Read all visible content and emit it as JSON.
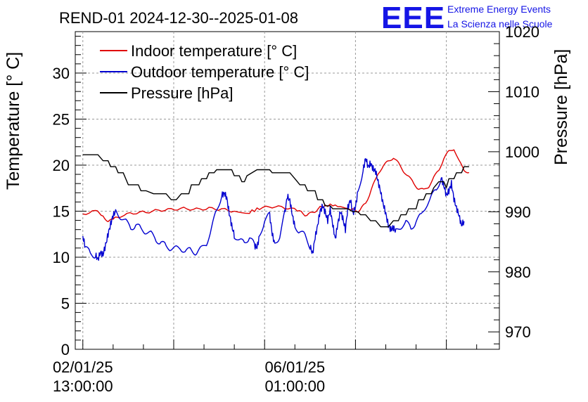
{
  "chart_data": {
    "type": "line",
    "title": "REND-01 2024-12-30--2025-01-08",
    "logo": {
      "text": "EEE",
      "line1": "Extreme Energy Events",
      "line2": "La Scienza nelle Scuole"
    },
    "ylabel_left": "Temperature [° C]",
    "ylabel_right": "Pressure [hPa]",
    "ylim_left": [
      0,
      34.5
    ],
    "ylim_right": [
      967.1,
      1020
    ],
    "xlim_hours": [
      -3,
      165
    ],
    "x_unit": "hours since 02/01/25 13:00:00",
    "left_ticks": [
      "0",
      "5",
      "10",
      "15",
      "20",
      "25",
      "30"
    ],
    "right_ticks": [
      "970",
      "980",
      "990",
      "1000",
      "1010",
      "1020"
    ],
    "x_ticks": [
      {
        "hours": 0,
        "line1": "02/01/25",
        "line2": "13:00:00"
      },
      {
        "hours": 84,
        "line1": "06/01/25",
        "line2": "01:00:00"
      }
    ],
    "grid": true,
    "legend_position": "top-left",
    "series": [
      {
        "name": "Indoor temperature [° C]",
        "axis": "left",
        "color": "#e00000",
        "points": [
          [
            0,
            14.7
          ],
          [
            5,
            15.0
          ],
          [
            8,
            14.6
          ],
          [
            10,
            13.8
          ],
          [
            12,
            14.1
          ],
          [
            15,
            14.5
          ],
          [
            20,
            14.8
          ],
          [
            25,
            14.9
          ],
          [
            30,
            15.1
          ],
          [
            35,
            15.2
          ],
          [
            40,
            15.3
          ],
          [
            45,
            15.2
          ],
          [
            50,
            15.3
          ],
          [
            55,
            15.2
          ],
          [
            60,
            15.0
          ],
          [
            66,
            14.9
          ],
          [
            70,
            15.3
          ],
          [
            75,
            15.5
          ],
          [
            80,
            15.4
          ],
          [
            85,
            15.1
          ],
          [
            88,
            14.6
          ],
          [
            91,
            14.8
          ],
          [
            94,
            15.4
          ],
          [
            98,
            15.7
          ],
          [
            102,
            15.5
          ],
          [
            106,
            15.2
          ],
          [
            109,
            15.0
          ],
          [
            112,
            15.8
          ],
          [
            115,
            17.8
          ],
          [
            117,
            19.2
          ],
          [
            119,
            19.8
          ],
          [
            121,
            20.5
          ],
          [
            123,
            20.8
          ],
          [
            125,
            20.2
          ],
          [
            127,
            19.4
          ],
          [
            129,
            18.7
          ],
          [
            131,
            18.1
          ],
          [
            133,
            17.4
          ],
          [
            135,
            17.3
          ],
          [
            137,
            17.7
          ],
          [
            139,
            18.6
          ],
          [
            141,
            19.5
          ],
          [
            143,
            20.7
          ],
          [
            145,
            21.5
          ],
          [
            147,
            21.8
          ],
          [
            149,
            20.4
          ],
          [
            151,
            19.5
          ],
          [
            153,
            19.2
          ]
        ]
      },
      {
        "name": "Outdoor temperature [° C]",
        "axis": "left",
        "color": "#0000d0",
        "points": [
          [
            0,
            12.3
          ],
          [
            1,
            11.0
          ],
          [
            3,
            10.4
          ],
          [
            5,
            10.2
          ],
          [
            6,
            9.8
          ],
          [
            7,
            10.5
          ],
          [
            8,
            10.3
          ],
          [
            9,
            11.3
          ],
          [
            10,
            12.5
          ],
          [
            11,
            13.6
          ],
          [
            12,
            14.5
          ],
          [
            13,
            15.0
          ],
          [
            15,
            14.4
          ],
          [
            17,
            13.8
          ],
          [
            19,
            13.3
          ],
          [
            21,
            13.4
          ],
          [
            23,
            13.1
          ],
          [
            25,
            12.8
          ],
          [
            27,
            12.5
          ],
          [
            29,
            12.0
          ],
          [
            31,
            11.5
          ],
          [
            33,
            11.2
          ],
          [
            35,
            11.0
          ],
          [
            37,
            10.9
          ],
          [
            39,
            11.0
          ],
          [
            41,
            10.6
          ],
          [
            43,
            10.8
          ],
          [
            45,
            10.5
          ],
          [
            47,
            10.9
          ],
          [
            49,
            11.6
          ],
          [
            51,
            13.0
          ],
          [
            53,
            15.2
          ],
          [
            55,
            16.7
          ],
          [
            56,
            17.0
          ],
          [
            57,
            16.4
          ],
          [
            58,
            14.8
          ],
          [
            59,
            13.4
          ],
          [
            60,
            12.4
          ],
          [
            62,
            11.6
          ],
          [
            64,
            11.8
          ],
          [
            66,
            12.1
          ],
          [
            68,
            11.3
          ],
          [
            69,
            11.0
          ],
          [
            70,
            12.4
          ],
          [
            72,
            14.0
          ],
          [
            74,
            14.6
          ],
          [
            75,
            12.5
          ],
          [
            76,
            11.5
          ],
          [
            78,
            12.3
          ],
          [
            80,
            14.8
          ],
          [
            81,
            16.6
          ],
          [
            82,
            16.2
          ],
          [
            83,
            14.5
          ],
          [
            84,
            13.4
          ],
          [
            86,
            12.8
          ],
          [
            88,
            12.3
          ],
          [
            90,
            11.2
          ],
          [
            91,
            10.4
          ],
          [
            92,
            12.1
          ],
          [
            93,
            13.5
          ],
          [
            94,
            15.0
          ],
          [
            95,
            15.6
          ],
          [
            96,
            14.9
          ],
          [
            97,
            14.0
          ],
          [
            98,
            15.2
          ],
          [
            99,
            13.5
          ],
          [
            100,
            12.0
          ],
          [
            101,
            13.6
          ],
          [
            102,
            15.0
          ],
          [
            103,
            14.2
          ],
          [
            104,
            13.0
          ],
          [
            105,
            15.4
          ],
          [
            106,
            16.2
          ],
          [
            107,
            14.8
          ],
          [
            108,
            15.4
          ],
          [
            109,
            17.3
          ],
          [
            111,
            19.4
          ],
          [
            112,
            20.8
          ],
          [
            113,
            19.8
          ],
          [
            114,
            20.2
          ],
          [
            115,
            19.6
          ],
          [
            116,
            19.3
          ],
          [
            117,
            18.2
          ],
          [
            118,
            17.0
          ],
          [
            119,
            15.8
          ],
          [
            120,
            14.7
          ],
          [
            121,
            13.5
          ],
          [
            122,
            13.0
          ],
          [
            123,
            13.2
          ],
          [
            124,
            12.8
          ],
          [
            126,
            13.4
          ],
          [
            128,
            13.7
          ],
          [
            130,
            13.2
          ],
          [
            132,
            13.9
          ],
          [
            134,
            14.5
          ],
          [
            136,
            15.7
          ],
          [
            138,
            16.4
          ],
          [
            140,
            17.5
          ],
          [
            142,
            18.6
          ],
          [
            143,
            17.8
          ],
          [
            144,
            16.7
          ],
          [
            145,
            17.2
          ],
          [
            146,
            18.0
          ],
          [
            147,
            16.3
          ],
          [
            148,
            15.4
          ],
          [
            149,
            14.5
          ],
          [
            150,
            13.5
          ],
          [
            151,
            13.9
          ]
        ]
      },
      {
        "name": "Pressure [hPa]",
        "axis": "right",
        "color": "#000000",
        "points": [
          [
            0,
            999.5
          ],
          [
            6,
            999.5
          ],
          [
            8,
            998.5
          ],
          [
            10,
            998.5
          ],
          [
            11,
            997.5
          ],
          [
            13,
            997.5
          ],
          [
            14,
            996.5
          ],
          [
            16,
            996.5
          ],
          [
            18,
            994.5
          ],
          [
            22,
            994.5
          ],
          [
            23,
            993.5
          ],
          [
            25,
            993.5
          ],
          [
            28,
            993.0
          ],
          [
            33,
            993.0
          ],
          [
            35,
            992.0
          ],
          [
            37,
            992.0
          ],
          [
            39,
            993.0
          ],
          [
            42,
            993.0
          ],
          [
            43,
            994.5
          ],
          [
            46,
            994.5
          ],
          [
            47,
            995.5
          ],
          [
            49,
            995.5
          ],
          [
            50,
            996.5
          ],
          [
            52,
            996.5
          ],
          [
            53,
            997.0
          ],
          [
            59,
            997.0
          ],
          [
            60,
            996.0
          ],
          [
            62,
            996.0
          ],
          [
            63,
            995.0
          ],
          [
            64,
            995.0
          ],
          [
            65,
            996.0
          ],
          [
            69,
            997.0
          ],
          [
            74,
            997.0
          ],
          [
            75,
            996.5
          ],
          [
            82,
            996.5
          ],
          [
            84,
            995.5
          ],
          [
            86,
            994.5
          ],
          [
            88,
            994.5
          ],
          [
            89,
            993.5
          ],
          [
            92,
            993.5
          ],
          [
            93,
            992.0
          ],
          [
            95,
            992.0
          ],
          [
            96,
            991.0
          ],
          [
            98,
            991.0
          ],
          [
            99,
            990.5
          ],
          [
            101,
            990.5
          ],
          [
            105,
            990.5
          ],
          [
            107,
            990.0
          ],
          [
            109,
            990.0
          ],
          [
            110,
            989.5
          ],
          [
            112,
            989.5
          ],
          [
            114,
            988.5
          ],
          [
            116,
            988.5
          ],
          [
            118,
            987.5
          ],
          [
            121,
            987.5
          ],
          [
            123,
            988.5
          ],
          [
            125,
            988.5
          ],
          [
            126,
            989.5
          ],
          [
            128,
            989.5
          ],
          [
            129,
            990.5
          ],
          [
            132,
            990.5
          ],
          [
            133,
            992.0
          ],
          [
            135,
            992.0
          ],
          [
            136,
            993.0
          ],
          [
            138,
            993.0
          ],
          [
            139,
            994.0
          ],
          [
            141,
            995.0
          ],
          [
            143,
            995.0
          ],
          [
            144,
            994.0
          ],
          [
            145,
            995.5
          ],
          [
            147,
            995.5
          ],
          [
            148,
            996.5
          ],
          [
            150,
            996.5
          ],
          [
            151,
            997.5
          ],
          [
            153,
            997.5
          ]
        ]
      }
    ]
  }
}
